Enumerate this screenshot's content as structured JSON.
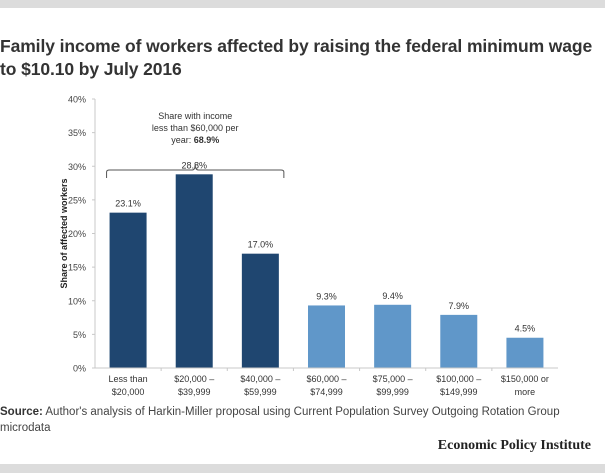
{
  "header": {
    "title": "Family income of workers affected by raising the federal minimum wage to $10.10 by July 2016"
  },
  "chart_data": {
    "type": "bar",
    "title": "Family income of workers affected by raising the federal minimum wage to $10.10 by July 2016",
    "xlabel": "",
    "ylabel": "Share of affected workers",
    "ylim": [
      0,
      40
    ],
    "yticks": [
      0,
      5,
      10,
      15,
      20,
      25,
      30,
      35,
      40
    ],
    "ytick_labels": [
      "0%",
      "5%",
      "10%",
      "15%",
      "20%",
      "25%",
      "30%",
      "35%",
      "40%"
    ],
    "grid": false,
    "categories": [
      [
        "Less than",
        "$20,000"
      ],
      [
        "$20,000 –",
        "$39,999"
      ],
      [
        "$40,000 –",
        "$59,999"
      ],
      [
        "$60,000 –",
        "$74,999"
      ],
      [
        "$75,000 –",
        "$99,999"
      ],
      [
        "$100,000 –",
        "$149,999"
      ],
      [
        "$150,000 or",
        "more"
      ]
    ],
    "values": [
      23.1,
      28.8,
      17.0,
      9.3,
      9.4,
      7.9,
      4.5
    ],
    "data_labels": [
      "23.1%",
      "28.8%",
      "17.0%",
      "9.3%",
      "9.4%",
      "7.9%",
      "4.5%"
    ],
    "bar_colors": [
      "#1f4670",
      "#1f4670",
      "#1f4670",
      "#6097c9",
      "#6097c9",
      "#6097c9",
      "#6097c9"
    ],
    "annotation": {
      "text_lines": [
        "Share with income",
        "less than $60,000 per"
      ],
      "last_line_prefix": "year: ",
      "last_line_bold": "68.9%",
      "spans_categories": [
        0,
        2
      ]
    }
  },
  "footer": {
    "source_label": "Source:",
    "source_text": "Author's analysis of Harkin-Miller proposal using Current Population Survey Outgoing Rotation Group microdata",
    "brand": "Economic Policy Institute"
  }
}
